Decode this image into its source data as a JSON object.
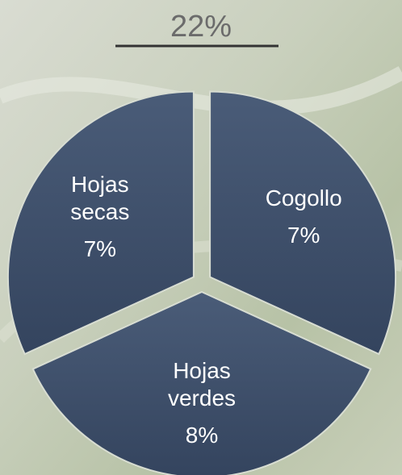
{
  "chart_data": {
    "type": "pie",
    "title": "22%",
    "categories": [
      "Cogollo",
      "Hojas verdes",
      "Hojas secas"
    ],
    "values": [
      7,
      8,
      7
    ],
    "value_labels": [
      "7%",
      "8%",
      "7%"
    ],
    "color": "#3f5070"
  }
}
